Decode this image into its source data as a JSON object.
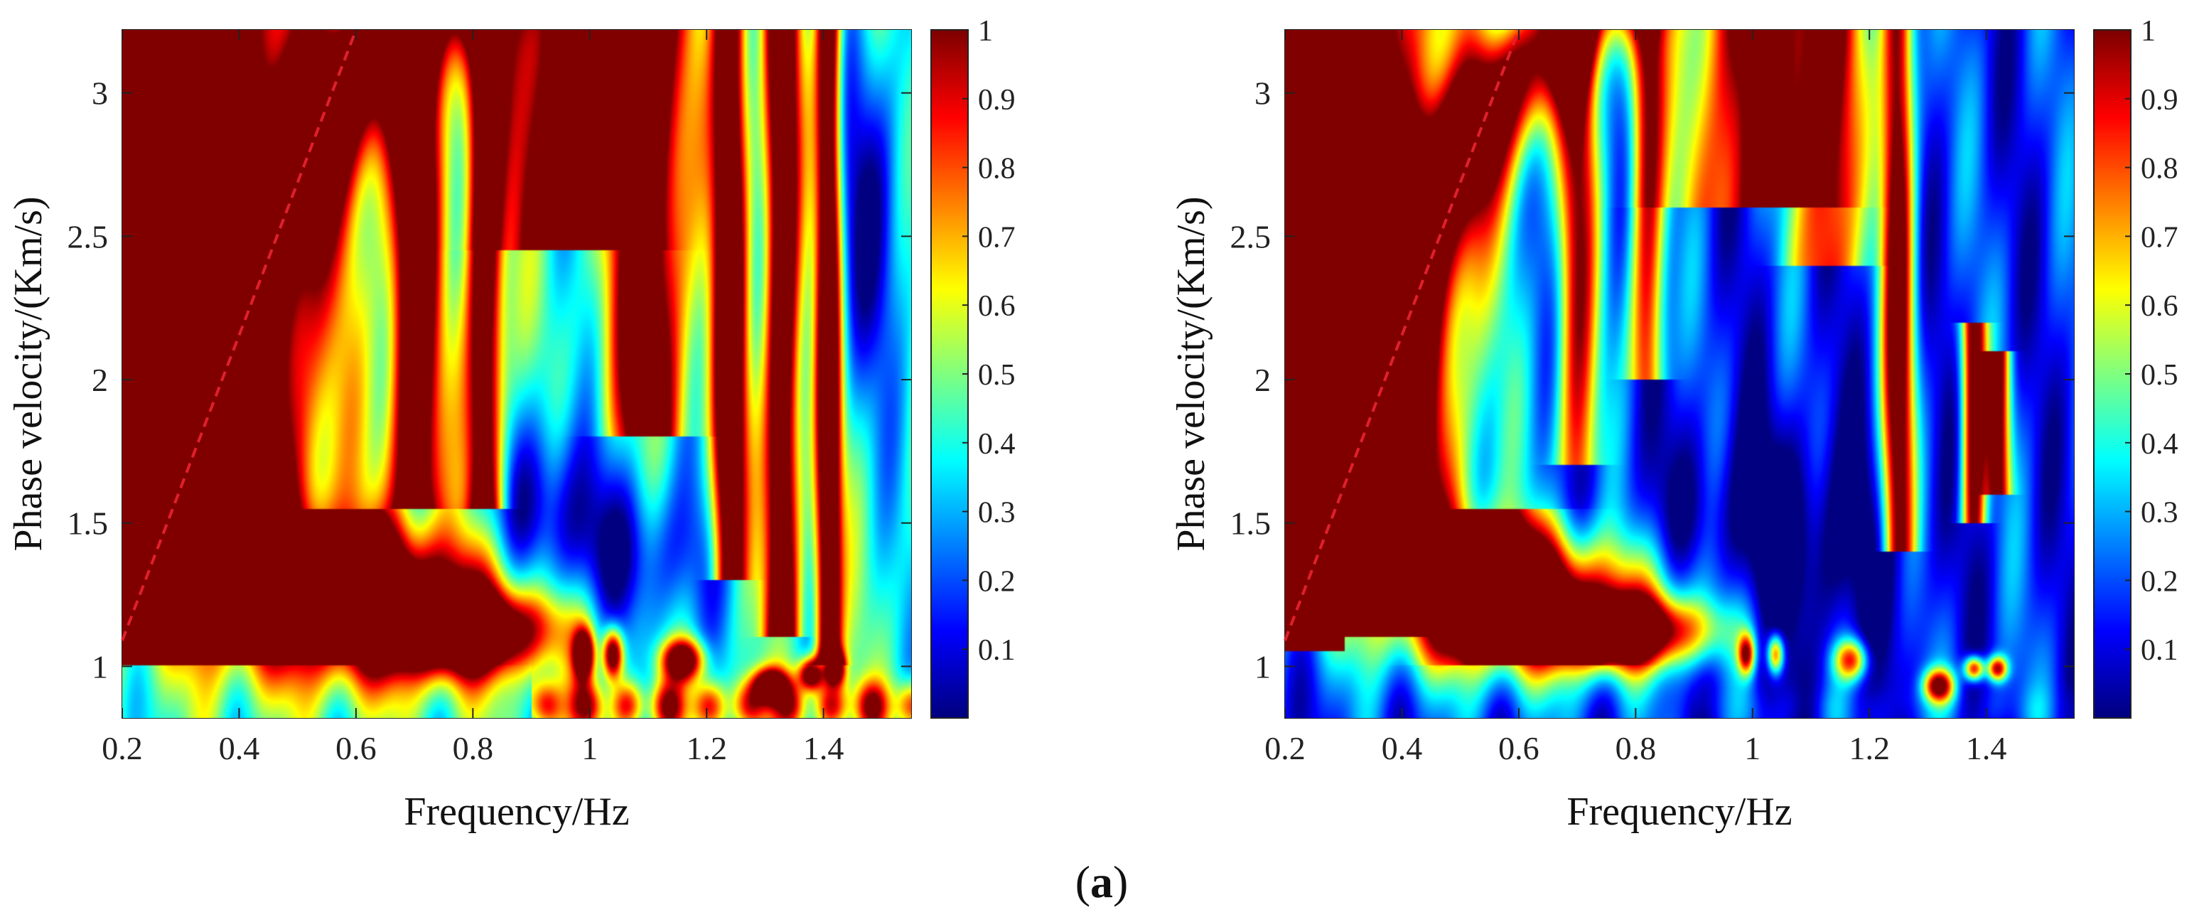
{
  "caption": {
    "letter": "a"
  },
  "chart_data": [
    {
      "type": "heatmap",
      "title": "",
      "xlabel": "Frequency/Hz",
      "ylabel": "Phase velocity/(Km/s)",
      "xlim": [
        0.2,
        1.55
      ],
      "ylim": [
        0.82,
        3.22
      ],
      "xticks": [
        0.2,
        0.4,
        0.6,
        0.8,
        1,
        1.2,
        1.4
      ],
      "xtick_labels": [
        "0.2",
        "0.4",
        "0.6",
        "0.8",
        "1",
        "1.2",
        "1.4"
      ],
      "yticks": [
        1,
        1.5,
        2,
        2.5,
        3
      ],
      "ytick_labels": [
        "1",
        "1.5",
        "2",
        "2.5",
        "3"
      ],
      "colorbar": {
        "range": [
          0,
          1
        ],
        "ticks": [
          0.1,
          0.2,
          0.3,
          0.4,
          0.5,
          0.6,
          0.7,
          0.8,
          0.9,
          1
        ],
        "tick_labels": [
          "0.1",
          "0.2",
          "0.3",
          "0.4",
          "0.5",
          "0.6",
          "0.7",
          "0.8",
          "0.9",
          "1"
        ],
        "colormap": "jet"
      },
      "dashed_line": {
        "color": "#e0202a",
        "points": [
          [
            0.2,
            1.09
          ],
          [
            0.6,
            3.22
          ]
        ]
      },
      "grid": false,
      "background_level": 0.42,
      "ridges": [
        {
          "f0": 0.26,
          "slope": 0.0,
          "curv": 0.0,
          "width": 0.16,
          "amp": 1.15,
          "vmin": 1.0,
          "vmax": 3.22,
          "fade": 0.0
        },
        {
          "f0": 0.42,
          "slope": -0.24,
          "curv": 0.16,
          "width": 0.09,
          "amp": 0.95,
          "vmin": 1.1,
          "vmax": 3.22,
          "fade": 0.0
        },
        {
          "f0": 0.62,
          "slope": -0.2,
          "curv": 0.0,
          "width": 0.09,
          "amp": 0.9,
          "vmin": 1.0,
          "vmax": 1.55,
          "fade": 0.0
        },
        {
          "f0": 0.7,
          "slope": 0.0,
          "curv": 0.0,
          "width": 0.028,
          "amp": 0.95,
          "vmin": 1.55,
          "vmax": 3.22,
          "fade": 0.0
        },
        {
          "f0": 0.82,
          "slope": 0.0,
          "curv": 0.0,
          "width": 0.022,
          "amp": 0.9,
          "vmin": 1.55,
          "vmax": 3.22,
          "fade": 0.0
        },
        {
          "f0": 0.97,
          "slope": 0.0,
          "curv": 0.0,
          "width": 0.07,
          "amp": 0.95,
          "vmin": 2.45,
          "vmax": 3.22,
          "fade": 0.0
        },
        {
          "f0": 1.1,
          "slope": 0.0,
          "curv": 0.0,
          "width": 0.045,
          "amp": 0.85,
          "vmin": 1.8,
          "vmax": 3.22,
          "fade": 0.0
        },
        {
          "f0": 1.24,
          "slope": 0.0,
          "curv": 0.0,
          "width": 0.02,
          "amp": 0.95,
          "vmin": 1.3,
          "vmax": 3.22,
          "fade": 0.0
        },
        {
          "f0": 1.33,
          "slope": 0.0,
          "curv": 0.0,
          "width": 0.02,
          "amp": 0.95,
          "vmin": 1.1,
          "vmax": 3.22,
          "fade": 0.0
        },
        {
          "f0": 1.41,
          "slope": 0.0,
          "curv": 0.0,
          "width": 0.015,
          "amp": 0.95,
          "vmin": 1.0,
          "vmax": 3.22,
          "fade": 0.0
        }
      ],
      "blobs": [
        {
          "f": 0.6,
          "v": 1.2,
          "sf": 0.22,
          "sv": 0.18,
          "amp": 0.9
        },
        {
          "f": 0.78,
          "v": 1.12,
          "sf": 0.1,
          "sv": 0.09,
          "amp": 0.95
        },
        {
          "f": 0.99,
          "v": 1.04,
          "sf": 0.012,
          "sv": 0.06,
          "amp": 0.9
        },
        {
          "f": 1.04,
          "v": 1.04,
          "sf": 0.012,
          "sv": 0.06,
          "amp": 0.9
        },
        {
          "f": 1.16,
          "v": 1.02,
          "sf": 0.025,
          "sv": 0.05,
          "amp": 0.85
        },
        {
          "f": 1.31,
          "v": 0.93,
          "sf": 0.02,
          "sv": 0.04,
          "amp": 0.95
        },
        {
          "f": 1.38,
          "v": 0.97,
          "sf": 0.015,
          "sv": 0.04,
          "amp": 0.9
        },
        {
          "f": 1.42,
          "v": 0.99,
          "sf": 0.012,
          "sv": 0.04,
          "amp": 0.9
        }
      ],
      "dips": [
        {
          "f": 1.05,
          "v": 1.35,
          "sf": 0.12,
          "sv": 0.22,
          "amp": 0.4
        },
        {
          "f": 1.48,
          "v": 2.6,
          "sf": 0.05,
          "sv": 0.45,
          "amp": 0.35
        },
        {
          "f": 0.92,
          "v": 1.6,
          "sf": 0.06,
          "sv": 0.25,
          "amp": 0.3
        }
      ],
      "floor": {
        "v": 0.86,
        "sv": 0.06,
        "amp": 0.55,
        "fstart": 0.9
      }
    },
    {
      "type": "heatmap",
      "title": "",
      "xlabel": "Frequency/Hz",
      "ylabel": "Phase velocity/(Km/s)",
      "xlim": [
        0.2,
        1.55
      ],
      "ylim": [
        0.82,
        3.22
      ],
      "xticks": [
        0.2,
        0.4,
        0.6,
        0.8,
        1,
        1.2,
        1.4
      ],
      "xtick_labels": [
        "0.2",
        "0.4",
        "0.6",
        "0.8",
        "1",
        "1.2",
        "1.4"
      ],
      "yticks": [
        1,
        1.5,
        2,
        2.5,
        3
      ],
      "ytick_labels": [
        "1",
        "1.5",
        "2",
        "2.5",
        "3"
      ],
      "colorbar": {
        "range": [
          0,
          1
        ],
        "ticks": [
          0.1,
          0.2,
          0.3,
          0.4,
          0.5,
          0.6,
          0.7,
          0.8,
          0.9,
          1
        ],
        "tick_labels": [
          "0.1",
          "0.2",
          "0.3",
          "0.4",
          "0.5",
          "0.6",
          "0.7",
          "0.8",
          "0.9",
          "1"
        ],
        "colormap": "jet"
      },
      "dashed_line": {
        "color": "#e0202a",
        "points": [
          [
            0.2,
            1.09
          ],
          [
            0.6,
            3.22
          ]
        ]
      },
      "grid": false,
      "background_level": 0.16,
      "ridges": [
        {
          "f0": 0.26,
          "slope": 0.0,
          "curv": 0.0,
          "width": 0.16,
          "amp": 1.2,
          "vmin": 1.1,
          "vmax": 3.22,
          "fade": 0.0
        },
        {
          "f0": 0.42,
          "slope": -0.24,
          "curv": 0.16,
          "width": 0.08,
          "amp": 0.9,
          "vmin": 1.2,
          "vmax": 3.22,
          "fade": 0.0
        },
        {
          "f0": 0.62,
          "slope": -0.2,
          "curv": 0.0,
          "width": 0.08,
          "amp": 0.9,
          "vmin": 1.0,
          "vmax": 1.55,
          "fade": 0.0
        },
        {
          "f0": 0.7,
          "slope": 0.0,
          "curv": 0.0,
          "width": 0.025,
          "amp": 0.75,
          "vmin": 1.7,
          "vmax": 3.22,
          "fade": 0.0
        },
        {
          "f0": 0.82,
          "slope": 0.0,
          "curv": 0.0,
          "width": 0.022,
          "amp": 0.8,
          "vmin": 2.0,
          "vmax": 3.22,
          "fade": 0.0
        },
        {
          "f0": 1.0,
          "slope": 0.0,
          "curv": 0.0,
          "width": 0.08,
          "amp": 0.95,
          "vmin": 2.6,
          "vmax": 3.22,
          "fade": 0.0
        },
        {
          "f0": 1.13,
          "slope": 0.0,
          "curv": 0.0,
          "width": 0.04,
          "amp": 0.85,
          "vmin": 2.4,
          "vmax": 3.22,
          "fade": 0.0
        },
        {
          "f0": 1.25,
          "slope": 0.0,
          "curv": 0.0,
          "width": 0.02,
          "amp": 0.95,
          "vmin": 1.4,
          "vmax": 3.22,
          "fade": 0.0
        },
        {
          "f0": 1.38,
          "slope": 0.0,
          "curv": 0.0,
          "width": 0.015,
          "amp": 0.95,
          "vmin": 1.5,
          "vmax": 2.2,
          "fade": 0.0
        },
        {
          "f0": 1.42,
          "slope": 0.0,
          "curv": 0.0,
          "width": 0.015,
          "amp": 0.9,
          "vmin": 1.6,
          "vmax": 2.1,
          "fade": 0.0
        }
      ],
      "blobs": [
        {
          "f": 0.6,
          "v": 1.2,
          "sf": 0.2,
          "sv": 0.17,
          "amp": 0.95
        },
        {
          "f": 0.78,
          "v": 1.12,
          "sf": 0.1,
          "sv": 0.08,
          "amp": 0.95
        },
        {
          "f": 0.99,
          "v": 1.04,
          "sf": 0.01,
          "sv": 0.05,
          "amp": 0.75
        },
        {
          "f": 1.04,
          "v": 1.04,
          "sf": 0.01,
          "sv": 0.05,
          "amp": 0.75
        },
        {
          "f": 1.17,
          "v": 1.02,
          "sf": 0.02,
          "sv": 0.05,
          "amp": 0.7
        },
        {
          "f": 1.32,
          "v": 0.93,
          "sf": 0.018,
          "sv": 0.04,
          "amp": 0.85
        },
        {
          "f": 1.38,
          "v": 0.99,
          "sf": 0.012,
          "sv": 0.03,
          "amp": 0.85
        },
        {
          "f": 1.42,
          "v": 0.99,
          "sf": 0.012,
          "sv": 0.03,
          "amp": 0.8
        }
      ],
      "dips": [
        {
          "f": 1.05,
          "v": 1.4,
          "sf": 0.14,
          "sv": 0.3,
          "amp": 0.3
        }
      ],
      "floor": {
        "v": 0.86,
        "sv": 0.05,
        "amp": 0.05,
        "fstart": 0.9
      }
    }
  ]
}
